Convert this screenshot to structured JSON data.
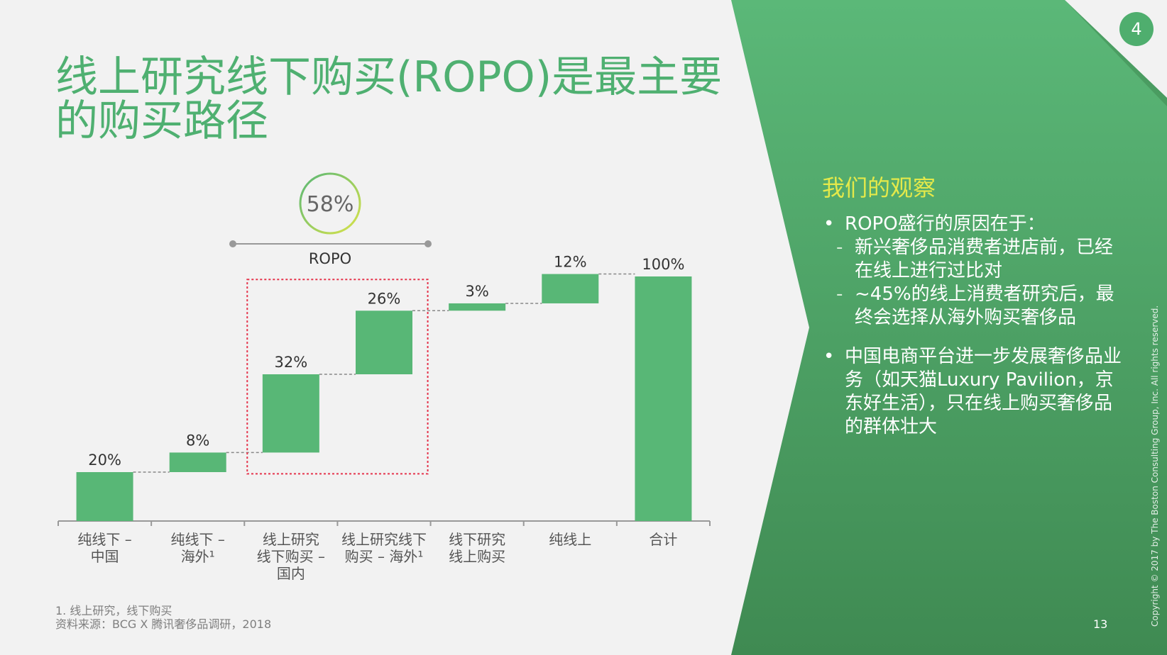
{
  "title": "线上研究线下购买(ROPO)是最主要的购买路径",
  "page_badge": "4",
  "page_number": "13",
  "copyright": "Copyright © 2017 by The Boston Consulting Group, Inc. All rights reserved.",
  "footnote": {
    "line1": "1. 线上研究，线下购买",
    "line2": "资料来源：BCG X 腾讯奢侈品调研，2018"
  },
  "ropo": {
    "total": "58%",
    "label": "ROPO"
  },
  "observations": {
    "title": "我们的观察",
    "bullet1": "ROPO盛行的原因在于：",
    "sub1": "新兴奢侈品消费者进店前，已经在线上进行过比对",
    "sub2": "~45%的线上消费者研究后，最终会选择从海外购买奢侈品",
    "bullet2": "中国电商平台进一步发展奢侈品业务（如天猫Luxury Pavilion，京东好生活），只在线上购买奢侈品的群体壮大"
  },
  "colors": {
    "bar": "#58b776",
    "title": "#4fb071",
    "panel": "#4a9e63",
    "accent": "#e4e94a",
    "highlight_box": "#e5334b"
  },
  "chart_data": {
    "type": "bar",
    "subtype": "waterfall",
    "categories": [
      [
        "纯线下 –",
        "中国"
      ],
      [
        "纯线下 –",
        "海外¹"
      ],
      [
        "线上研究",
        "线下购买 –",
        "国内"
      ],
      [
        "线上研究线下",
        "购买 – 海外¹"
      ],
      [
        "线下研究",
        "线上购买"
      ],
      [
        "纯线上"
      ],
      [
        "合计"
      ]
    ],
    "values": [
      20,
      8,
      32,
      26,
      3,
      12,
      100
    ],
    "labels": [
      "20%",
      "8%",
      "32%",
      "26%",
      "3%",
      "12%",
      "100%"
    ],
    "total_index": 6,
    "highlight_range": [
      2,
      3
    ],
    "ylim": [
      0,
      100
    ]
  }
}
